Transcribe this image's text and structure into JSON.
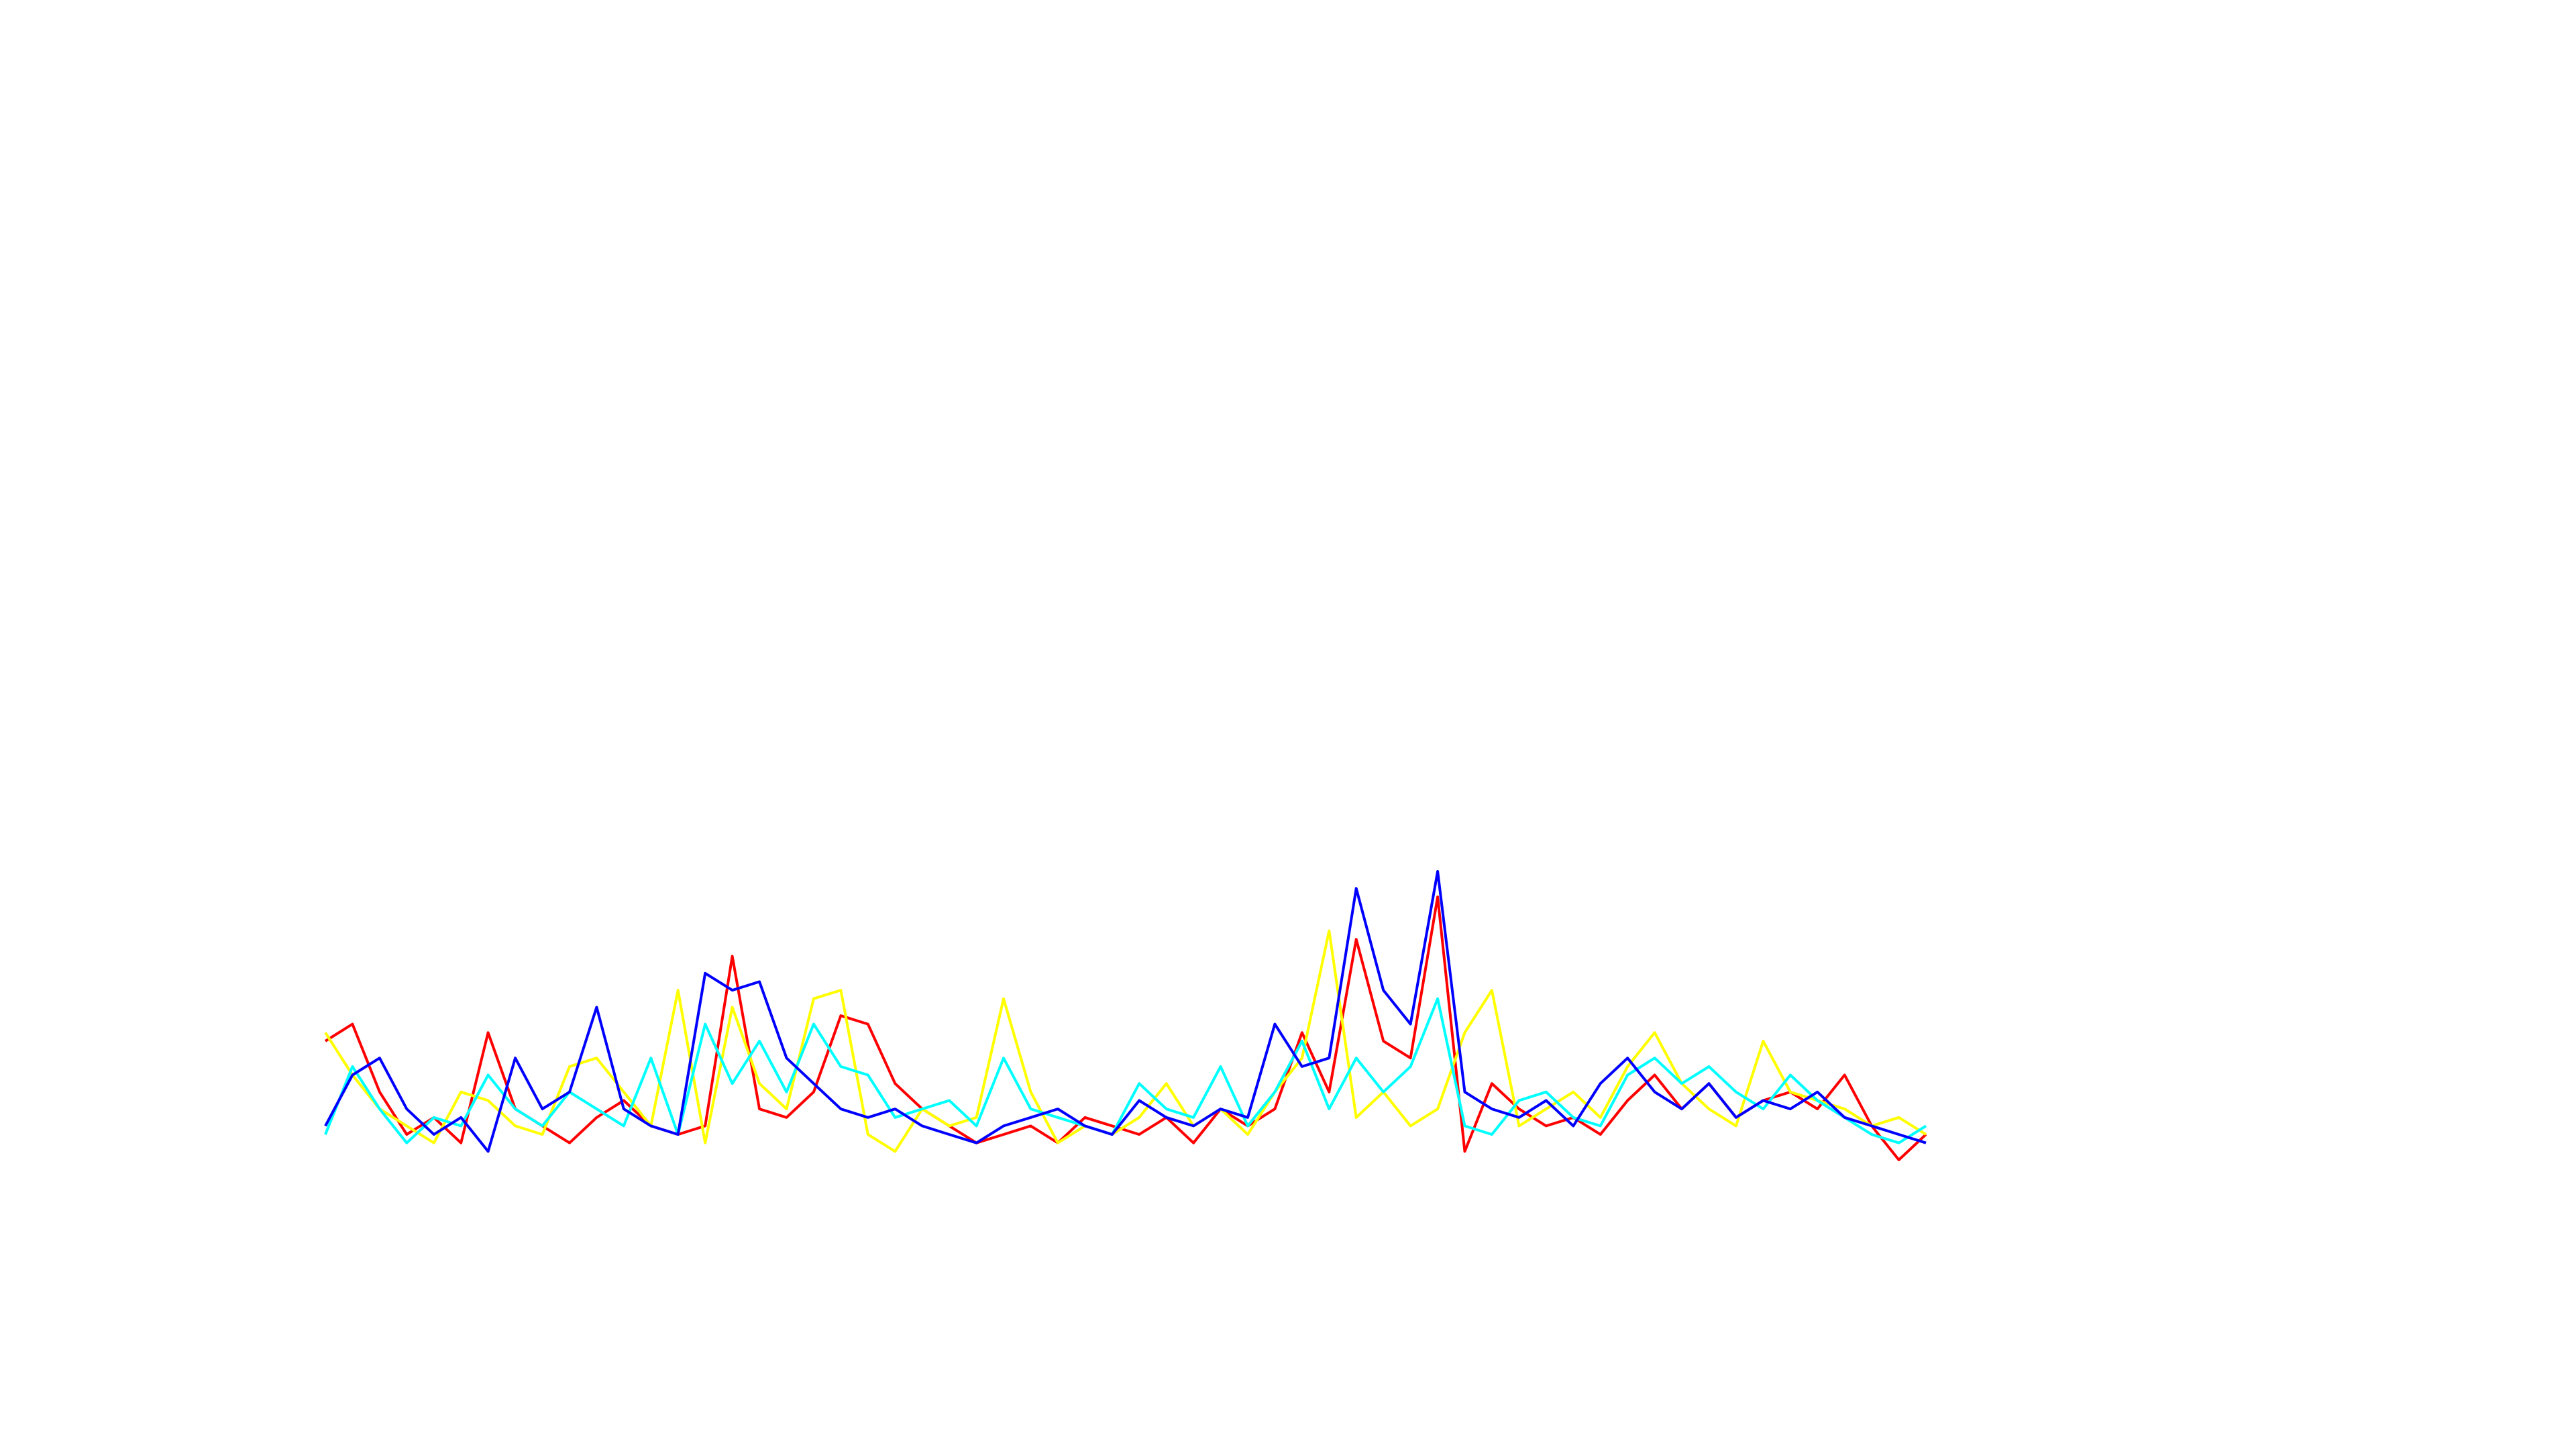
{
  "chart_data": {
    "type": "line",
    "series": [
      {
        "color": "#ff0000",
        "values": [
          70,
          80,
          40,
          15,
          25,
          10,
          75,
          30,
          20,
          10,
          25,
          35,
          20,
          15,
          20,
          120,
          30,
          25,
          40,
          85,
          80,
          45,
          30,
          20,
          10,
          15,
          20,
          10,
          25,
          20,
          15,
          25,
          10,
          30,
          20,
          30,
          75,
          40,
          130,
          70,
          60,
          155,
          5,
          45,
          30,
          20,
          25,
          15,
          35,
          50,
          30,
          45,
          25,
          35,
          40,
          30,
          50,
          20,
          0,
          15
        ]
      },
      {
        "color": "#ffff00",
        "values": [
          75,
          50,
          30,
          20,
          10,
          40,
          35,
          20,
          15,
          55,
          60,
          40,
          20,
          100,
          10,
          90,
          45,
          30,
          95,
          100,
          15,
          5,
          30,
          20,
          25,
          95,
          40,
          10,
          20,
          15,
          25,
          45,
          20,
          30,
          15,
          40,
          60,
          135,
          25,
          40,
          20,
          30,
          75,
          100,
          20,
          30,
          40,
          25,
          55,
          75,
          45,
          30,
          20,
          70,
          40,
          35,
          30,
          20,
          25,
          15
        ]
      },
      {
        "color": "#00ffff",
        "values": [
          15,
          55,
          30,
          10,
          25,
          20,
          50,
          30,
          20,
          40,
          30,
          20,
          60,
          15,
          80,
          45,
          70,
          40,
          80,
          55,
          50,
          25,
          30,
          35,
          20,
          60,
          30,
          25,
          20,
          15,
          45,
          30,
          25,
          55,
          20,
          40,
          70,
          30,
          60,
          40,
          55,
          95,
          20,
          15,
          35,
          40,
          25,
          20,
          50,
          60,
          45,
          55,
          40,
          30,
          50,
          35,
          25,
          15,
          10,
          20
        ]
      },
      {
        "color": "#0000ff",
        "values": [
          20,
          50,
          60,
          30,
          15,
          25,
          5,
          60,
          30,
          40,
          90,
          30,
          20,
          15,
          110,
          100,
          105,
          60,
          45,
          30,
          25,
          30,
          20,
          15,
          10,
          20,
          25,
          30,
          20,
          15,
          35,
          25,
          20,
          30,
          25,
          80,
          55,
          60,
          160,
          100,
          80,
          170,
          40,
          30,
          25,
          35,
          20,
          45,
          60,
          40,
          30,
          45,
          25,
          35,
          30,
          40,
          25,
          20,
          15,
          10
        ]
      }
    ]
  }
}
